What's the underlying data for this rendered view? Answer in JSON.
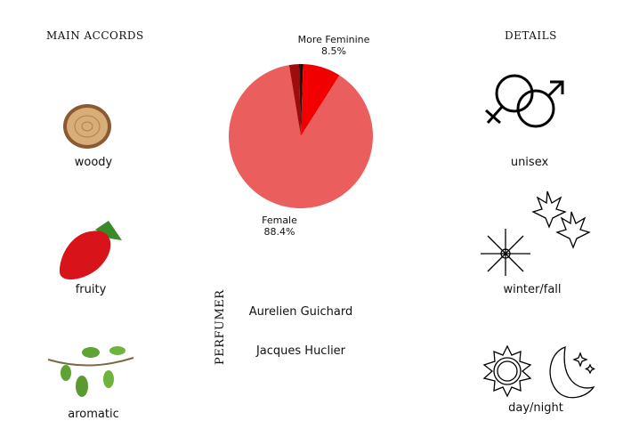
{
  "headers": {
    "accords": "MAIN ACCORDS",
    "details": "DETAILS",
    "perfumer": "PERFUMER"
  },
  "accords": [
    {
      "label": "woody",
      "icon": "wood-slice"
    },
    {
      "label": "fruity",
      "icon": "strawberry"
    },
    {
      "label": "aromatic",
      "icon": "herb-sprig"
    }
  ],
  "details": [
    {
      "label": "unisex",
      "icon": "gender-symbols"
    },
    {
      "label": "winter/fall",
      "icon": "snowflake-maple-leaves"
    },
    {
      "label": "day/night",
      "icon": "sun-moon"
    }
  ],
  "perfumers": [
    "Aurelien Guichard",
    "Jacques Huclier"
  ],
  "chart_data": {
    "type": "pie",
    "slices": [
      {
        "label": "",
        "value": 0.5,
        "color": "#1a0a0a"
      },
      {
        "label": "More Feminine",
        "value": 8.5,
        "display": "8.5%",
        "color": "#f20000"
      },
      {
        "label": "Female",
        "value": 88.4,
        "display": "88.4%",
        "color": "#eb5e5e"
      },
      {
        "label": "",
        "value": 2.2,
        "color": "#a00c0c"
      },
      {
        "label": "",
        "value": 0.4,
        "color": "#4a0606"
      }
    ]
  }
}
